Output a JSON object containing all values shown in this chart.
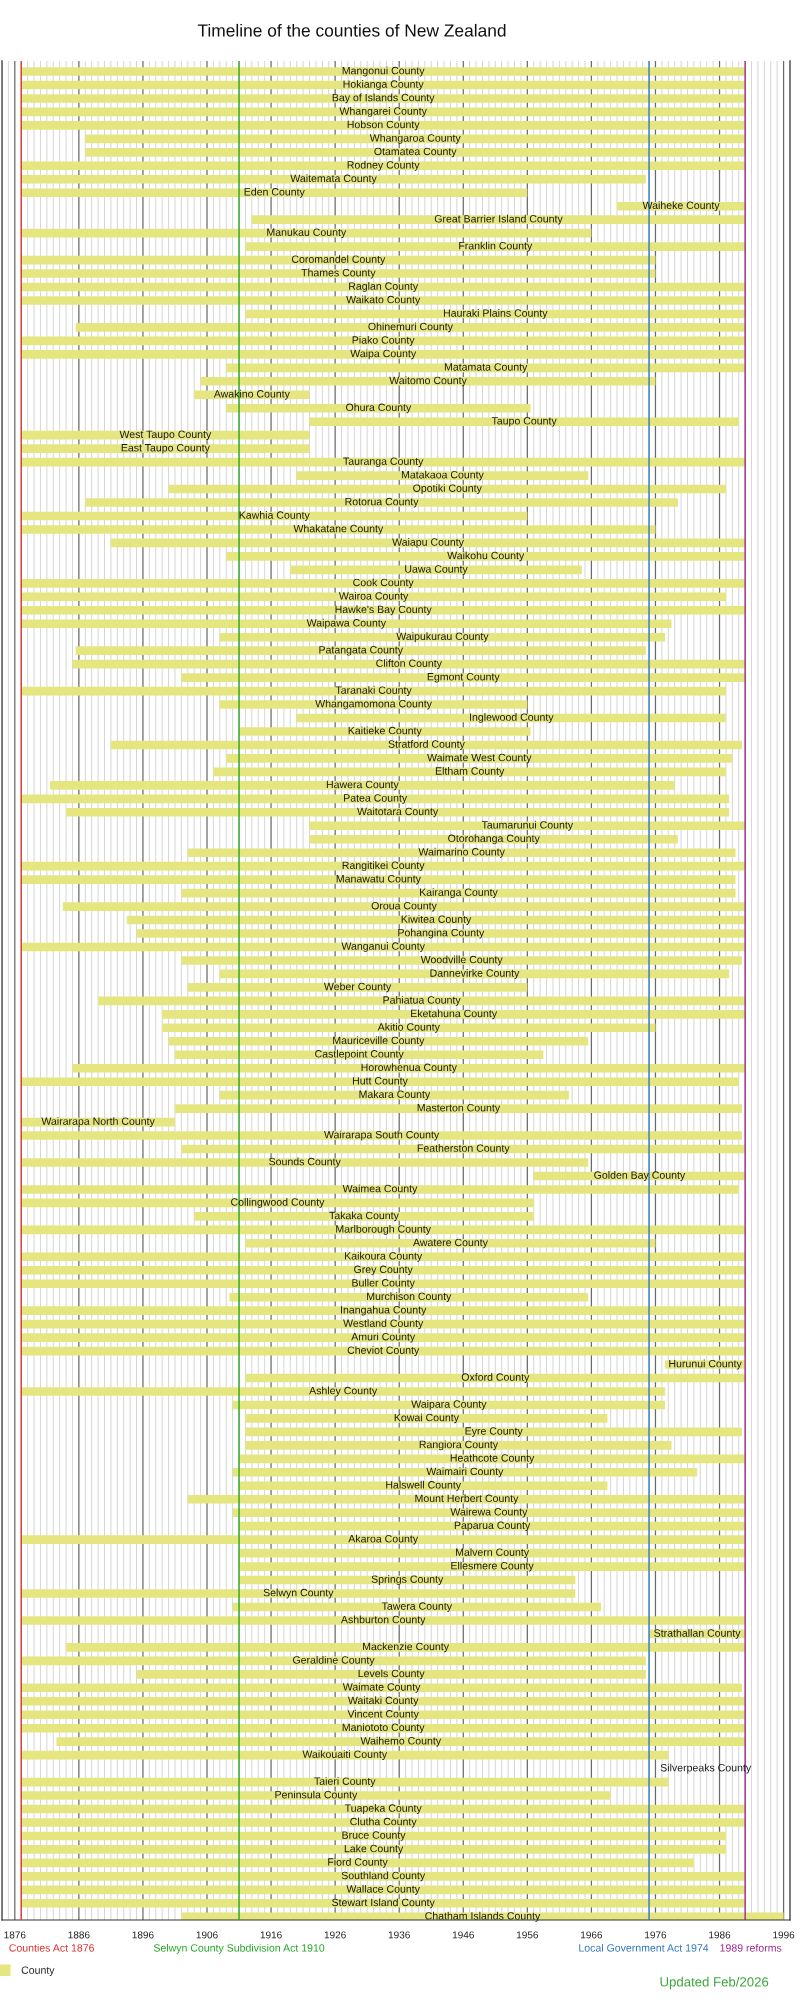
{
  "chart_data": {
    "type": "bar",
    "orientation": "horizontal",
    "title": "Timeline of the counties of New Zealand",
    "categories": [
      "Mangonui County",
      "Hokianga County",
      "Bay of Islands County",
      "Whangarei County",
      "Hobson County",
      "Whangaroa County",
      "Otamatea County",
      "Rodney County",
      "Waitemata County",
      "Eden County",
      "Waiheke County",
      "Great Barrier Island County",
      "Manukau County",
      "Franklin County",
      "Coromandel County",
      "Thames County",
      "Raglan County",
      "Waikato County",
      "Hauraki Plains County",
      "Ohinemuri County",
      "Piako County",
      "Waipa County",
      "Matamata County",
      "Waitomo County",
      "Awakino County",
      "Ohura County",
      "Taupo County",
      "West Taupo County",
      "East Taupo County",
      "Tauranga County",
      "Matakaoa County",
      "Opotiki County",
      "Rotorua County",
      "Kawhia County",
      "Whakatane County",
      "Waiapu County",
      "Waikohu County",
      "Uawa County",
      "Cook County",
      "Wairoa County",
      "Hawke's Bay County",
      "Waipawa County",
      "Waipukurau County",
      "Patangata County",
      "Clifton County",
      "Egmont County",
      "Taranaki County",
      "Whangamomona County",
      "Inglewood County",
      "Kaitieke County",
      "Stratford County",
      "Waimate West County",
      "Eltham County",
      "Hawera County",
      "Patea County",
      "Waitotara County",
      "Taumarunui County",
      "Otorohanga County",
      "Waimarino County",
      "Rangitikei County",
      "Manawatu County",
      "Kairanga County",
      "Oroua County",
      "Kiwitea County",
      "Pohangina County",
      "Wanganui County",
      "Woodville County",
      "Dannevirke County",
      "Weber County",
      "Pahiatua County",
      "Eketahuna County",
      "Akitio County",
      "Mauriceville County",
      "Castlepoint County",
      "Horowhenua County",
      "Hutt County",
      "Makara County",
      "Masterton County",
      "Wairarapa North County",
      "Wairarapa South County",
      "Featherston County",
      "Sounds County",
      "Golden Bay County",
      "Waimea County",
      "Collingwood County",
      "Takaka County",
      "Marlborough County",
      "Awatere County",
      "Kaikoura County",
      "Grey County",
      "Buller County",
      "Murchison County",
      "Inangahua County",
      "Westland County",
      "Amuri County",
      "Cheviot County",
      "Hurunui County",
      "Oxford County",
      "Ashley County",
      "Waipara County",
      "Kowai County",
      "Eyre County",
      "Rangiora County",
      "Heathcote County",
      "Waimairi County",
      "Halswell County",
      "Mount Herbert County",
      "Wairewa County",
      "Paparua County",
      "Akaroa County",
      "Malvern County",
      "Ellesmere County",
      "Springs County",
      "Selwyn County",
      "Tawera County",
      "Ashburton County",
      "Strathallan County",
      "Mackenzie County",
      "Geraldine County",
      "Levels County",
      "Waimate County",
      "Waitaki County",
      "Vincent County",
      "Maniototo County",
      "Waihemo County",
      "Waikouaiti County",
      null,
      "Taieri County",
      "Peninsula County",
      "Tuapeka County",
      "Clutha County",
      "Bruce County",
      "Lake County",
      "Fiord County",
      "Southland County",
      "Wallace County",
      "Stewart Island County",
      "Chatham Islands County"
    ],
    "series": [
      {
        "name": "County",
        "color": "#e6e680",
        "base": [
          1877,
          1877,
          1877,
          1877,
          1877,
          1887,
          1887,
          1877,
          1877,
          1877,
          1970,
          1913,
          1877,
          1912,
          1877,
          1877,
          1877,
          1877,
          1912,
          1885.5,
          1877,
          1877,
          1909,
          1905,
          1904,
          1909,
          1922,
          1877,
          1877,
          1877,
          1920,
          1900,
          1887,
          1877,
          1877,
          1891,
          1909,
          1919,
          1877,
          1877,
          1877,
          1877,
          1908,
          1885.5,
          1885,
          1902,
          1877,
          1908,
          1920,
          1911,
          1891,
          1909,
          1907,
          1881.5,
          1877,
          1884,
          1922,
          1922,
          1903,
          1877,
          1877,
          1902,
          1883.5,
          1893.5,
          1895,
          1877,
          1902,
          1908,
          1903,
          1889,
          1899,
          1899,
          1900,
          1901,
          1885,
          1877,
          1908,
          1901,
          1877,
          1877,
          1902,
          1877,
          1957,
          1877,
          1877,
          1904,
          1877,
          1912,
          1877,
          1877,
          1877,
          1909.5,
          1877,
          1877,
          1877,
          1877,
          1977.5,
          1912,
          1877,
          1910,
          1912,
          1912,
          1912,
          1911,
          1910,
          1911,
          1903,
          1910,
          1911,
          1877,
          1911,
          1911,
          1911,
          1877,
          1910,
          1877,
          1975,
          1884,
          1877,
          1895,
          1877,
          1877,
          1877,
          1877,
          1882.5,
          1877,
          null,
          1877,
          1877,
          1877,
          1877,
          1877,
          1877,
          1877,
          1877,
          1877,
          1877,
          1902
        ],
        "values": [
          113,
          113,
          113,
          113,
          113,
          103,
          103,
          113,
          97.5,
          79,
          20,
          77,
          89,
          78,
          99,
          99,
          113,
          113,
          78,
          104.5,
          113,
          113,
          81,
          71,
          18,
          47.5,
          67,
          45,
          45,
          113,
          45.5,
          87,
          92.5,
          79,
          99,
          99,
          81,
          45.5,
          113,
          110,
          113,
          101.5,
          69.5,
          89,
          105,
          88,
          110,
          48,
          67,
          45.5,
          98.5,
          79,
          80,
          97.5,
          110.5,
          103.5,
          68,
          57.5,
          85.5,
          113,
          111.5,
          86.5,
          106.5,
          96.5,
          95,
          113,
          87.5,
          79.5,
          53,
          101,
          91,
          77,
          65.5,
          57.5,
          105,
          112,
          54.5,
          88.5,
          24,
          112.5,
          88,
          88.5,
          33,
          112,
          80,
          53,
          113,
          64,
          113,
          113,
          113,
          56,
          113,
          113,
          113,
          113,
          12.5,
          78,
          100.5,
          67.5,
          56.5,
          77.5,
          66.5,
          79,
          72.5,
          57.5,
          87,
          80,
          79,
          113,
          79,
          79,
          52.5,
          86.5,
          57.5,
          113,
          15,
          106,
          97.5,
          79.5,
          112.5,
          113,
          113,
          113,
          107.5,
          101,
          null,
          101,
          92,
          113,
          113,
          110,
          110,
          105,
          113,
          113,
          113,
          94
        ]
      }
    ],
    "xlim": [
      1874,
      1997
    ],
    "xticks": [
      1876,
      1886,
      1896,
      1906,
      1916,
      1926,
      1936,
      1946,
      1956,
      1966,
      1976,
      1986,
      1996
    ],
    "grid": "x",
    "legend": "bottom left",
    "ref_lines": [
      {
        "axis": "x",
        "value": 1877,
        "label": "Counties Act 1876",
        "color": "#dc3232"
      },
      {
        "axis": "x",
        "value": 1911,
        "label": "Selwyn County Subdivision Act 1910",
        "color": "#22a722"
      },
      {
        "axis": "x",
        "value": 1975,
        "label": "Local Government Act 1974",
        "color": "#2f78c0"
      },
      {
        "axis": "x",
        "value": 1990,
        "label": "1989 reforms",
        "color": "#9a2a8e"
      }
    ],
    "annotations": [
      "Silverpeaks County",
      "Updated Feb/2026"
    ]
  }
}
